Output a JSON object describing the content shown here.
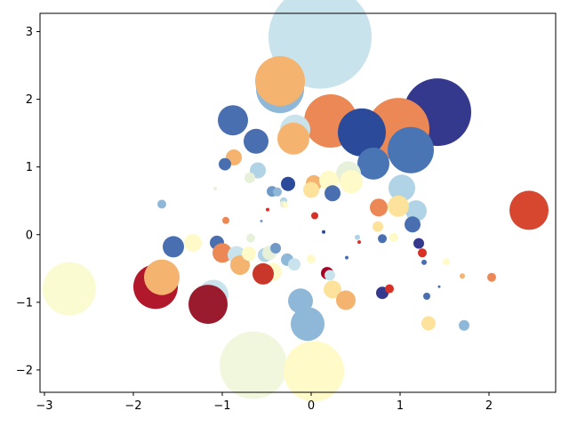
{
  "chart_data": {
    "type": "scatter",
    "title": "",
    "xlabel": "",
    "ylabel": "",
    "xlim": [
      -3.05,
      2.75
    ],
    "ylim": [
      -2.33,
      3.27
    ],
    "grid": false,
    "legend": "none",
    "x_ticks": [
      -3,
      -2,
      -1,
      0,
      1,
      2
    ],
    "x_tick_labels": [
      "−3",
      "−2",
      "−1",
      "0",
      "1",
      "2"
    ],
    "y_ticks": [
      -2,
      -1,
      0,
      1,
      2,
      3
    ],
    "y_tick_labels": [
      "−2",
      "−1",
      "0",
      "1",
      "2",
      "3"
    ],
    "colormap": "RdYlBu",
    "points": [
      {
        "x": 0.1,
        "y": 2.92,
        "size": 58,
        "color": "#c9e3ec"
      },
      {
        "x": -0.35,
        "y": 2.15,
        "size": 27,
        "color": "#8fb8d8"
      },
      {
        "x": -0.35,
        "y": 2.27,
        "size": 28,
        "color": "#f4b36e"
      },
      {
        "x": 1.42,
        "y": 1.81,
        "size": 38,
        "color": "#35398e"
      },
      {
        "x": 0.98,
        "y": 1.56,
        "size": 35,
        "color": "#ec8855"
      },
      {
        "x": 0.22,
        "y": 1.68,
        "size": 30,
        "color": "#ec8855"
      },
      {
        "x": 0.57,
        "y": 1.51,
        "size": 27,
        "color": "#2c4a9a"
      },
      {
        "x": 1.12,
        "y": 1.25,
        "size": 26,
        "color": "#4a75b4"
      },
      {
        "x": 0.7,
        "y": 1.05,
        "size": 18,
        "color": "#4a75b4"
      },
      {
        "x": -0.18,
        "y": 1.55,
        "size": 17,
        "color": "#c9e3ec"
      },
      {
        "x": -0.2,
        "y": 1.42,
        "size": 18,
        "color": "#f4b36e"
      },
      {
        "x": -0.88,
        "y": 1.69,
        "size": 17,
        "color": "#4a6fb0"
      },
      {
        "x": -0.62,
        "y": 1.38,
        "size": 14,
        "color": "#4a6fb0"
      },
      {
        "x": -0.87,
        "y": 1.14,
        "size": 9,
        "color": "#f4b36e"
      },
      {
        "x": -0.6,
        "y": 0.95,
        "size": 9,
        "color": "#b0d4e6"
      },
      {
        "x": -0.97,
        "y": 1.04,
        "size": 7,
        "color": "#4a6fb0"
      },
      {
        "x": 0.42,
        "y": 0.9,
        "size": 14,
        "color": "#e7f1da"
      },
      {
        "x": 0.45,
        "y": 0.78,
        "size": 13,
        "color": "#fffac8"
      },
      {
        "x": 0.03,
        "y": 0.76,
        "size": 9,
        "color": "#f4b36e"
      },
      {
        "x": 0.2,
        "y": 0.8,
        "size": 11,
        "color": "#fffac8"
      },
      {
        "x": 0.0,
        "y": 0.66,
        "size": 9,
        "color": "#fce29a"
      },
      {
        "x": 0.24,
        "y": 0.61,
        "size": 9,
        "color": "#4a6fb0"
      },
      {
        "x": -0.26,
        "y": 0.75,
        "size": 8,
        "color": "#2c4a9a"
      },
      {
        "x": -0.44,
        "y": 0.64,
        "size": 6,
        "color": "#6f9ac8"
      },
      {
        "x": -0.38,
        "y": 0.63,
        "size": 5,
        "color": "#8fb8d8"
      },
      {
        "x": -0.31,
        "y": 0.5,
        "size": 4,
        "color": "#b0d4e6"
      },
      {
        "x": -0.31,
        "y": 0.45,
        "size": 4,
        "color": "#e7f1da"
      },
      {
        "x": -0.29,
        "y": 0.44,
        "size": 3,
        "color": "#fffac8"
      },
      {
        "x": -0.69,
        "y": 0.84,
        "size": 6,
        "color": "#e7f1da"
      },
      {
        "x": -1.08,
        "y": 0.68,
        "size": 2,
        "color": "#e7f1da"
      },
      {
        "x": 1.02,
        "y": 0.69,
        "size": 15,
        "color": "#b0d4e6"
      },
      {
        "x": 1.18,
        "y": 0.35,
        "size": 12,
        "color": "#b0d4e6"
      },
      {
        "x": 0.98,
        "y": 0.42,
        "size": 12,
        "color": "#fce29a"
      },
      {
        "x": 0.76,
        "y": 0.4,
        "size": 10,
        "color": "#ec8855"
      },
      {
        "x": 1.14,
        "y": 0.15,
        "size": 9,
        "color": "#4a6fb0"
      },
      {
        "x": 0.75,
        "y": 0.12,
        "size": 6,
        "color": "#fce29a"
      },
      {
        "x": 0.93,
        "y": -0.04,
        "size": 5,
        "color": "#fffac8"
      },
      {
        "x": 0.8,
        "y": -0.06,
        "size": 5,
        "color": "#4a6fb0"
      },
      {
        "x": 0.52,
        "y": -0.04,
        "size": 3,
        "color": "#b0d4e6"
      },
      {
        "x": 0.54,
        "y": -0.11,
        "size": 2,
        "color": "#d73027"
      },
      {
        "x": 0.14,
        "y": 0.04,
        "size": 2,
        "color": "#2c4a9a"
      },
      {
        "x": 0.04,
        "y": 0.28,
        "size": 4,
        "color": "#d73027"
      },
      {
        "x": -1.68,
        "y": 0.45,
        "size": 5,
        "color": "#8fb8d8"
      },
      {
        "x": -0.96,
        "y": 0.21,
        "size": 4,
        "color": "#ec8855"
      },
      {
        "x": -0.49,
        "y": 0.37,
        "size": 2,
        "color": "#d73027"
      },
      {
        "x": -0.56,
        "y": 0.2,
        "size": 1.5,
        "color": "#6f9ac8"
      },
      {
        "x": 2.45,
        "y": 0.36,
        "size": 22,
        "color": "#d7462f"
      },
      {
        "x": 1.21,
        "y": -0.13,
        "size": 6,
        "color": "#35398e"
      },
      {
        "x": 1.25,
        "y": -0.27,
        "size": 5,
        "color": "#d73027"
      },
      {
        "x": 1.27,
        "y": -0.41,
        "size": 3,
        "color": "#4a6fb0"
      },
      {
        "x": 1.52,
        "y": -0.4,
        "size": 4,
        "color": "#fffac8"
      },
      {
        "x": 1.7,
        "y": -0.61,
        "size": 3,
        "color": "#f4b36e"
      },
      {
        "x": 2.03,
        "y": -0.63,
        "size": 5,
        "color": "#ec8855"
      },
      {
        "x": 1.44,
        "y": -0.77,
        "size": 1.5,
        "color": "#4a6fb0"
      },
      {
        "x": 1.3,
        "y": -0.91,
        "size": 4,
        "color": "#4a6fb0"
      },
      {
        "x": 1.32,
        "y": -1.31,
        "size": 8,
        "color": "#fce29a"
      },
      {
        "x": 1.72,
        "y": -1.34,
        "size": 6,
        "color": "#8fb8d8"
      },
      {
        "x": -1.55,
        "y": -0.18,
        "size": 12,
        "color": "#4a6fb0"
      },
      {
        "x": -1.33,
        "y": -0.12,
        "size": 10,
        "color": "#fffac8"
      },
      {
        "x": -1.06,
        "y": -0.12,
        "size": 8,
        "color": "#4a6fb0"
      },
      {
        "x": -1.0,
        "y": -0.27,
        "size": 11,
        "color": "#ec8855"
      },
      {
        "x": -0.68,
        "y": -0.05,
        "size": 5,
        "color": "#e7f1da"
      },
      {
        "x": -0.84,
        "y": -0.3,
        "size": 10,
        "color": "#c9e3ec"
      },
      {
        "x": -0.8,
        "y": -0.45,
        "size": 11,
        "color": "#f4b36e"
      },
      {
        "x": -0.7,
        "y": -0.28,
        "size": 8,
        "color": "#fffac8"
      },
      {
        "x": -0.52,
        "y": -0.3,
        "size": 8,
        "color": "#b0d4e6"
      },
      {
        "x": -0.47,
        "y": -0.27,
        "size": 8,
        "color": "#e7f1da"
      },
      {
        "x": -0.4,
        "y": -0.2,
        "size": 6,
        "color": "#6f9ac8"
      },
      {
        "x": -0.43,
        "y": -0.55,
        "size": 10,
        "color": "#fffac8"
      },
      {
        "x": -0.54,
        "y": -0.58,
        "size": 12,
        "color": "#c9372a"
      },
      {
        "x": -0.27,
        "y": -0.37,
        "size": 7,
        "color": "#8fb8d8"
      },
      {
        "x": -0.19,
        "y": -0.44,
        "size": 7,
        "color": "#c9e3ec"
      },
      {
        "x": 0.0,
        "y": -0.36,
        "size": 5,
        "color": "#fffac8"
      },
      {
        "x": 0.4,
        "y": -0.34,
        "size": 2,
        "color": "#4a6fb0"
      },
      {
        "x": 0.18,
        "y": -0.57,
        "size": 7,
        "color": "#a50026"
      },
      {
        "x": 0.21,
        "y": -0.6,
        "size": 6,
        "color": "#c9e3ec"
      },
      {
        "x": 0.24,
        "y": -0.81,
        "size": 10,
        "color": "#fce29a"
      },
      {
        "x": 0.39,
        "y": -0.97,
        "size": 11,
        "color": "#f4b36e"
      },
      {
        "x": 0.8,
        "y": -0.86,
        "size": 7,
        "color": "#35398e"
      },
      {
        "x": 0.88,
        "y": -0.8,
        "size": 5,
        "color": "#d73027"
      },
      {
        "x": -0.12,
        "y": -0.98,
        "size": 14,
        "color": "#8fb8d8"
      },
      {
        "x": -0.04,
        "y": -1.32,
        "size": 19,
        "color": "#8fb8d8"
      },
      {
        "x": -1.75,
        "y": -0.77,
        "size": 25,
        "color": "#b2182b"
      },
      {
        "x": -1.68,
        "y": -0.63,
        "size": 20,
        "color": "#f4b36e"
      },
      {
        "x": -1.1,
        "y": -0.89,
        "size": 17,
        "color": "#c9e3ec"
      },
      {
        "x": -1.16,
        "y": -1.03,
        "size": 22,
        "color": "#9a1a2e"
      },
      {
        "x": -2.72,
        "y": -0.8,
        "size": 30,
        "color": "#fbfbd2"
      },
      {
        "x": -0.65,
        "y": -1.93,
        "size": 38,
        "color": "#f0f7dc"
      },
      {
        "x": 0.03,
        "y": -2.02,
        "size": 34,
        "color": "#fffac8"
      }
    ]
  }
}
